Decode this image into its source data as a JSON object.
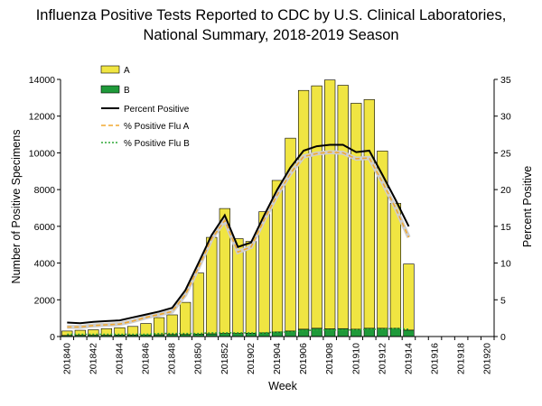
{
  "chart_data": {
    "type": "bar",
    "title": "Influenza Positive Tests Reported to CDC by U.S. Clinical Laboratories,",
    "subtitle": "National Summary,  2018-2019 Season",
    "xlabel": "Week",
    "ylabel": "Number of Positive Specimens",
    "y2label": "Percent Positive",
    "ylim": [
      0,
      14000
    ],
    "y2lim": [
      0,
      35
    ],
    "yticks": [
      "0",
      "2000",
      "4000",
      "6000",
      "8000",
      "10000",
      "12000",
      "14000"
    ],
    "y2ticks": [
      "0",
      "5",
      "10",
      "15",
      "20",
      "25",
      "30",
      "35"
    ],
    "categories": [
      "201840",
      "201841",
      "201842",
      "201843",
      "201844",
      "201845",
      "201846",
      "201847",
      "201848",
      "201849",
      "201850",
      "201851",
      "201852",
      "201901",
      "201902",
      "201903",
      "201904",
      "201905",
      "201906",
      "201907",
      "201908",
      "201909",
      "201910",
      "201911",
      "201912",
      "201913",
      "201914",
      "201915",
      "201916",
      "201917",
      "201918",
      "201919",
      "201920"
    ],
    "tick_labels": [
      "201840",
      "201842",
      "201844",
      "201846",
      "201848",
      "201850",
      "201852",
      "201902",
      "201904",
      "201906",
      "201908",
      "201910",
      "201912",
      "201914",
      "201916",
      "201918",
      "201920"
    ],
    "stacked": true,
    "legend_position": "top-left",
    "series": [
      {
        "name": "A",
        "kind": "bar",
        "axis": "left",
        "color": "#f0e542",
        "values": [
          240,
          270,
          300,
          360,
          400,
          470,
          620,
          930,
          1070,
          1750,
          3330,
          5250,
          6800,
          5160,
          5000,
          6600,
          8250,
          10500,
          13000,
          13200,
          13550,
          13250,
          12300,
          12450,
          9650,
          6800,
          3600,
          null,
          null,
          null,
          null,
          null,
          null
        ]
      },
      {
        "name": "B",
        "kind": "bar",
        "axis": "left",
        "color": "#1f9a3a",
        "values": [
          60,
          70,
          70,
          70,
          80,
          80,
          90,
          100,
          110,
          110,
          130,
          150,
          170,
          170,
          180,
          200,
          250,
          300,
          400,
          450,
          420,
          430,
          400,
          450,
          450,
          450,
          350,
          null,
          null,
          null,
          null,
          null,
          null
        ]
      },
      {
        "name": "Percent Positive",
        "kind": "line",
        "axis": "right",
        "color": "#000000",
        "style": "solid",
        "values": [
          1.9,
          1.8,
          2.0,
          2.1,
          2.2,
          2.6,
          3.0,
          3.4,
          3.9,
          6.3,
          10.0,
          13.8,
          16.5,
          12.2,
          12.8,
          16.5,
          20.0,
          23.0,
          25.3,
          25.9,
          26.1,
          26.1,
          25.1,
          25.3,
          22.0,
          18.6,
          15.0,
          null,
          null,
          null,
          null,
          null,
          null
        ]
      },
      {
        "name": "% Positive Flu A",
        "kind": "line",
        "axis": "right",
        "color": "#f0a830",
        "style": "dashed",
        "values": [
          1.3,
          1.3,
          1.5,
          1.6,
          1.7,
          2.1,
          2.6,
          3.0,
          3.4,
          5.7,
          9.4,
          13.3,
          15.8,
          11.5,
          12.2,
          15.9,
          19.3,
          22.2,
          24.5,
          24.9,
          25.1,
          25.0,
          24.2,
          24.3,
          21.0,
          17.5,
          13.5,
          null,
          null,
          null,
          null,
          null,
          null
        ]
      },
      {
        "name": "% Positive Flu B",
        "kind": "line",
        "axis": "right",
        "color": "#2ea836",
        "style": "dotted",
        "values": [
          0.3,
          0.3,
          0.3,
          0.3,
          0.3,
          0.3,
          0.3,
          0.4,
          0.4,
          0.4,
          0.4,
          0.5,
          0.5,
          0.5,
          0.5,
          0.5,
          0.6,
          0.6,
          0.8,
          0.9,
          0.9,
          0.9,
          0.9,
          1.0,
          1.0,
          1.1,
          1.0,
          null,
          null,
          null,
          null,
          null,
          null
        ]
      }
    ]
  }
}
